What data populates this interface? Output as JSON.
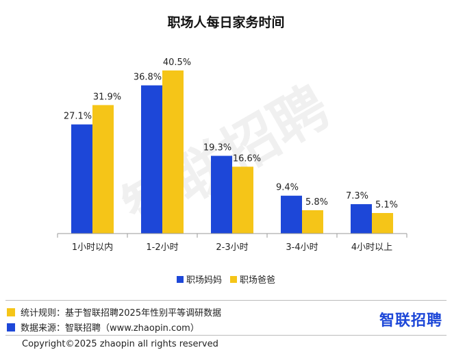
{
  "chart_data": {
    "type": "bar",
    "title": "职场人每日家务时间",
    "categories": [
      "1小时以内",
      "1-2小时",
      "2-3小时",
      "3-4小时",
      "4小时以上"
    ],
    "series": [
      {
        "name": "职场妈妈",
        "values": [
          27.1,
          36.8,
          19.3,
          9.4,
          7.3
        ],
        "labels": [
          "27.1%",
          "36.8%",
          "19.3%",
          "9.4%",
          "7.3%"
        ],
        "color": "#1d47d8"
      },
      {
        "name": "职场爸爸",
        "values": [
          31.9,
          40.5,
          16.6,
          5.8,
          5.1
        ],
        "labels": [
          "31.9%",
          "40.5%",
          "16.6%",
          "5.8%",
          "5.1%"
        ],
        "color": "#f5c518"
      }
    ],
    "ylim": [
      0,
      45
    ],
    "grid": false,
    "legend": "bottom"
  },
  "notes": {
    "rule_text": "统计规则：基于智联招聘2025年性别平等调研数据",
    "rule_color": "#f5c518",
    "source_text": "数据来源：智联招聘（www.zhaopin.com）",
    "source_color": "#1d47d8"
  },
  "brand": {
    "logo_text": "智联招聘",
    "watermark_text": "智联招聘"
  },
  "footer": {
    "copyright": "Copyright©2025 zhaopin all rights reserved"
  }
}
